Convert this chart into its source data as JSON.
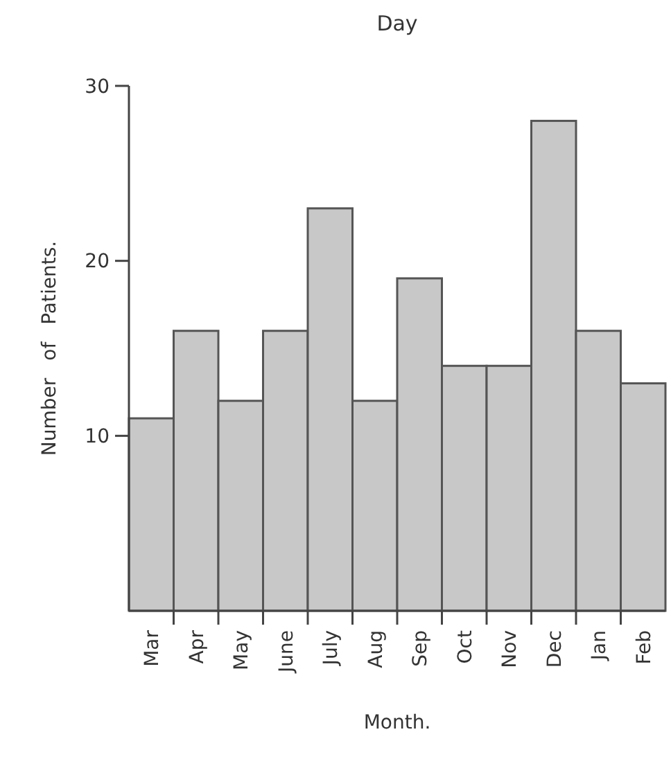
{
  "chart_data": {
    "type": "bar",
    "title": "Day",
    "xlabel": "Month.",
    "ylabel": "Number of Patients.",
    "categories": [
      "Mar",
      "Apr",
      "May",
      "June",
      "July",
      "Aug",
      "Sep",
      "Oct",
      "Nov",
      "Dec",
      "Jan",
      "Feb"
    ],
    "values": [
      11,
      16,
      12,
      16,
      23,
      12,
      19,
      14,
      14,
      28,
      16,
      13
    ],
    "color": "#c8c8c8",
    "ylim": [
      0,
      30
    ],
    "yticks": [
      10,
      20,
      30
    ],
    "grid": false
  }
}
